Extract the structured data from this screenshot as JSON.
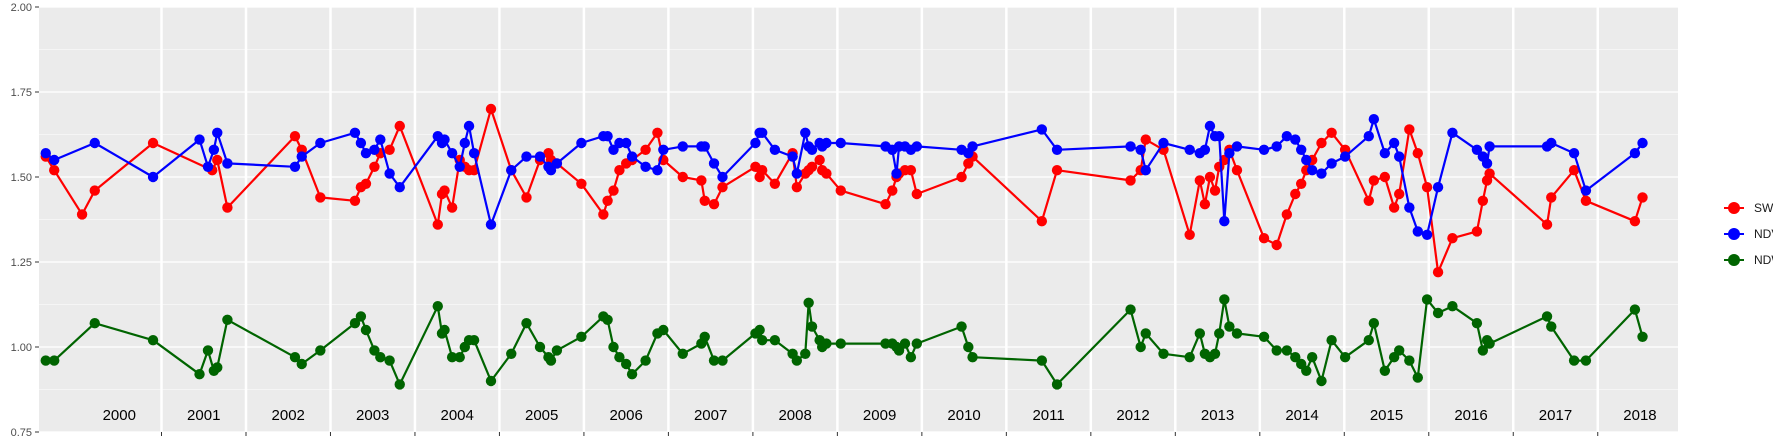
{
  "chart_data": {
    "type": "line",
    "title": "",
    "xlabel": "",
    "ylabel": "",
    "xlim": [
      1999.55,
      2018.95
    ],
    "ylim": [
      0.75,
      2.0
    ],
    "y_ticks": [
      "0.75",
      "1.00",
      "1.25",
      "1.50",
      "1.75",
      "2.00"
    ],
    "y_tick_values": [
      0.75,
      1.0,
      1.25,
      1.5,
      1.75,
      2.0
    ],
    "year_labels": [
      "2000",
      "2001",
      "2002",
      "2003",
      "2004",
      "2005",
      "2006",
      "2007",
      "2008",
      "2009",
      "2010",
      "2011",
      "2012",
      "2013",
      "2014",
      "2015",
      "2016",
      "2017",
      "2018"
    ],
    "grid": true,
    "legend_position": "right",
    "series": [
      {
        "name": "SWIR",
        "color": "#ff0000",
        "x": [
          1999.63,
          1999.73,
          2000.06,
          2000.21,
          2000.9,
          2001.6,
          2001.66,
          2001.78,
          2002.58,
          2002.66,
          2002.88,
          2003.29,
          2003.36,
          2003.42,
          2003.52,
          2003.59,
          2003.7,
          2003.82,
          2004.27,
          2004.32,
          2004.35,
          2004.44,
          2004.53,
          2004.59,
          2004.64,
          2004.7,
          2004.9,
          2005.14,
          2005.32,
          2005.48,
          2005.58,
          2005.61,
          2005.68,
          2005.97,
          2006.23,
          2006.28,
          2006.35,
          2006.42,
          2006.5,
          2006.57,
          2006.73,
          2006.87,
          2006.94,
          2007.17,
          2007.39,
          2007.43,
          2007.54,
          2007.64,
          2008.03,
          2008.08,
          2008.11,
          2008.26,
          2008.47,
          2008.52,
          2008.62,
          2008.66,
          2008.7,
          2008.79,
          2008.82,
          2008.87,
          2009.04,
          2009.57,
          2009.65,
          2009.7,
          2009.73,
          2009.8,
          2009.87,
          2009.94,
          2010.47,
          2010.55,
          2010.6,
          2011.42,
          2011.6,
          2012.47,
          2012.59,
          2012.65,
          2012.86,
          2013.17,
          2013.29,
          2013.35,
          2013.41,
          2013.47,
          2013.52,
          2013.58,
          2013.64,
          2013.73,
          2014.05,
          2014.2,
          2014.32,
          2014.42,
          2014.49,
          2014.55,
          2014.62,
          2014.73,
          2014.85,
          2015.01,
          2015.29,
          2015.35,
          2015.48,
          2015.59,
          2015.65,
          2015.77,
          2015.87,
          2015.98,
          2016.11,
          2016.28,
          2016.57,
          2016.64,
          2016.69,
          2016.72,
          2017.4,
          2017.45,
          2017.72,
          2017.86,
          2018.44,
          2018.53
        ],
        "y": [
          1.56,
          1.52,
          1.39,
          1.46,
          1.6,
          1.52,
          1.55,
          1.41,
          1.62,
          1.58,
          1.44,
          1.43,
          1.47,
          1.48,
          1.53,
          1.57,
          1.58,
          1.65,
          1.36,
          1.45,
          1.46,
          1.41,
          1.55,
          1.53,
          1.52,
          1.52,
          1.7,
          1.52,
          1.44,
          1.55,
          1.57,
          1.55,
          1.54,
          1.48,
          1.39,
          1.43,
          1.46,
          1.52,
          1.54,
          1.55,
          1.58,
          1.63,
          1.55,
          1.5,
          1.49,
          1.43,
          1.42,
          1.47,
          1.53,
          1.5,
          1.52,
          1.48,
          1.57,
          1.47,
          1.51,
          1.52,
          1.53,
          1.55,
          1.52,
          1.51,
          1.46,
          1.42,
          1.46,
          1.5,
          1.51,
          1.52,
          1.52,
          1.45,
          1.5,
          1.54,
          1.56,
          1.37,
          1.52,
          1.49,
          1.52,
          1.61,
          1.58,
          1.33,
          1.49,
          1.42,
          1.5,
          1.46,
          1.53,
          1.55,
          1.58,
          1.52,
          1.32,
          1.3,
          1.39,
          1.45,
          1.48,
          1.52,
          1.55,
          1.6,
          1.63,
          1.58,
          1.43,
          1.49,
          1.5,
          1.41,
          1.45,
          1.64,
          1.57,
          1.47,
          1.22,
          1.32,
          1.34,
          1.43,
          1.49,
          1.51,
          1.36,
          1.44,
          1.52,
          1.43,
          1.37,
          1.44
        ]
      },
      {
        "name": "NDVI",
        "color": "#0000ff",
        "x": [
          1999.63,
          1999.73,
          2000.21,
          2000.9,
          2001.45,
          2001.55,
          2001.62,
          2001.66,
          2001.78,
          2002.58,
          2002.66,
          2002.88,
          2003.29,
          2003.36,
          2003.42,
          2003.52,
          2003.59,
          2003.7,
          2003.82,
          2004.27,
          2004.32,
          2004.35,
          2004.44,
          2004.53,
          2004.59,
          2004.64,
          2004.7,
          2004.9,
          2005.14,
          2005.32,
          2005.48,
          2005.58,
          2005.61,
          2005.68,
          2005.97,
          2006.23,
          2006.28,
          2006.35,
          2006.42,
          2006.5,
          2006.57,
          2006.73,
          2006.87,
          2006.94,
          2007.17,
          2007.39,
          2007.43,
          2007.54,
          2007.64,
          2008.03,
          2008.08,
          2008.11,
          2008.26,
          2008.47,
          2008.52,
          2008.62,
          2008.66,
          2008.7,
          2008.79,
          2008.82,
          2008.87,
          2009.04,
          2009.57,
          2009.65,
          2009.7,
          2009.73,
          2009.8,
          2009.87,
          2009.94,
          2010.47,
          2010.55,
          2010.6,
          2011.42,
          2011.6,
          2012.47,
          2012.59,
          2012.65,
          2012.86,
          2013.17,
          2013.29,
          2013.35,
          2013.41,
          2013.47,
          2013.52,
          2013.58,
          2013.64,
          2013.73,
          2014.05,
          2014.2,
          2014.32,
          2014.42,
          2014.49,
          2014.55,
          2014.62,
          2014.73,
          2014.85,
          2015.01,
          2015.29,
          2015.35,
          2015.48,
          2015.59,
          2015.65,
          2015.77,
          2015.87,
          2015.98,
          2016.11,
          2016.28,
          2016.57,
          2016.64,
          2016.69,
          2016.72,
          2017.4,
          2017.45,
          2017.72,
          2017.86,
          2018.44,
          2018.53
        ],
        "y": [
          1.57,
          1.55,
          1.6,
          1.5,
          1.61,
          1.53,
          1.58,
          1.63,
          1.54,
          1.53,
          1.56,
          1.6,
          1.63,
          1.6,
          1.57,
          1.58,
          1.61,
          1.51,
          1.47,
          1.62,
          1.6,
          1.61,
          1.57,
          1.53,
          1.6,
          1.65,
          1.57,
          1.36,
          1.52,
          1.56,
          1.56,
          1.53,
          1.52,
          1.54,
          1.6,
          1.62,
          1.62,
          1.58,
          1.6,
          1.6,
          1.56,
          1.53,
          1.52,
          1.58,
          1.59,
          1.59,
          1.59,
          1.54,
          1.5,
          1.6,
          1.63,
          1.63,
          1.58,
          1.56,
          1.51,
          1.63,
          1.59,
          1.58,
          1.6,
          1.59,
          1.6,
          1.6,
          1.59,
          1.58,
          1.51,
          1.59,
          1.59,
          1.58,
          1.59,
          1.58,
          1.57,
          1.59,
          1.64,
          1.58,
          1.59,
          1.58,
          1.52,
          1.6,
          1.58,
          1.57,
          1.58,
          1.65,
          1.62,
          1.62,
          1.37,
          1.57,
          1.59,
          1.58,
          1.59,
          1.62,
          1.61,
          1.58,
          1.55,
          1.52,
          1.51,
          1.54,
          1.56,
          1.62,
          1.67,
          1.57,
          1.6,
          1.56,
          1.41,
          1.34,
          1.33,
          1.47,
          1.63,
          1.58,
          1.56,
          1.54,
          1.59,
          1.59,
          1.6,
          1.57,
          1.46,
          1.57,
          1.6
        ]
      },
      {
        "name": "NDWI",
        "color": "#006400",
        "x": [
          1999.63,
          1999.73,
          2000.21,
          2000.9,
          2001.45,
          2001.55,
          2001.62,
          2001.66,
          2001.78,
          2002.58,
          2002.66,
          2002.88,
          2003.29,
          2003.36,
          2003.42,
          2003.52,
          2003.59,
          2003.7,
          2003.82,
          2004.27,
          2004.32,
          2004.35,
          2004.44,
          2004.53,
          2004.59,
          2004.64,
          2004.7,
          2004.9,
          2005.14,
          2005.32,
          2005.48,
          2005.58,
          2005.61,
          2005.68,
          2005.97,
          2006.23,
          2006.28,
          2006.35,
          2006.42,
          2006.5,
          2006.57,
          2006.73,
          2006.87,
          2006.94,
          2007.17,
          2007.39,
          2007.43,
          2007.54,
          2007.64,
          2008.03,
          2008.08,
          2008.11,
          2008.26,
          2008.47,
          2008.52,
          2008.62,
          2008.66,
          2008.7,
          2008.79,
          2008.82,
          2008.87,
          2009.04,
          2009.57,
          2009.65,
          2009.7,
          2009.73,
          2009.8,
          2009.87,
          2009.94,
          2010.47,
          2010.55,
          2010.6,
          2011.42,
          2011.6,
          2012.47,
          2012.59,
          2012.65,
          2012.86,
          2013.17,
          2013.29,
          2013.35,
          2013.41,
          2013.47,
          2013.52,
          2013.58,
          2013.64,
          2013.73,
          2014.05,
          2014.2,
          2014.32,
          2014.42,
          2014.49,
          2014.55,
          2014.62,
          2014.73,
          2014.85,
          2015.01,
          2015.29,
          2015.35,
          2015.48,
          2015.59,
          2015.65,
          2015.77,
          2015.87,
          2015.98,
          2016.11,
          2016.28,
          2016.57,
          2016.64,
          2016.69,
          2016.72,
          2017.4,
          2017.45,
          2017.72,
          2017.86,
          2018.44,
          2018.53
        ],
        "y": [
          0.96,
          0.96,
          1.07,
          1.02,
          0.92,
          0.99,
          0.93,
          0.94,
          1.08,
          0.97,
          0.95,
          0.99,
          1.07,
          1.09,
          1.05,
          0.99,
          0.97,
          0.96,
          0.89,
          1.12,
          1.04,
          1.05,
          0.97,
          0.97,
          1.0,
          1.02,
          1.02,
          0.9,
          0.98,
          1.07,
          1.0,
          0.97,
          0.96,
          0.99,
          1.03,
          1.09,
          1.08,
          1.0,
          0.97,
          0.95,
          0.92,
          0.96,
          1.04,
          1.05,
          0.98,
          1.01,
          1.03,
          0.96,
          0.96,
          1.04,
          1.05,
          1.02,
          1.02,
          0.98,
          0.96,
          0.98,
          1.13,
          1.06,
          1.02,
          1.0,
          1.01,
          1.01,
          1.01,
          1.01,
          1.0,
          0.99,
          1.01,
          0.97,
          1.01,
          1.06,
          1.0,
          0.97,
          0.96,
          0.89,
          1.11,
          1.0,
          1.04,
          0.98,
          0.97,
          1.04,
          0.98,
          0.97,
          0.98,
          1.04,
          1.14,
          1.06,
          1.04,
          1.03,
          0.99,
          0.99,
          0.97,
          0.95,
          0.93,
          0.97,
          0.9,
          1.02,
          0.97,
          1.02,
          1.07,
          0.93,
          0.97,
          0.99,
          0.96,
          0.91,
          1.14,
          1.1,
          1.12,
          1.07,
          0.99,
          1.02,
          1.01,
          1.09,
          1.06,
          0.96,
          0.96,
          1.11,
          1.03
        ]
      }
    ]
  }
}
